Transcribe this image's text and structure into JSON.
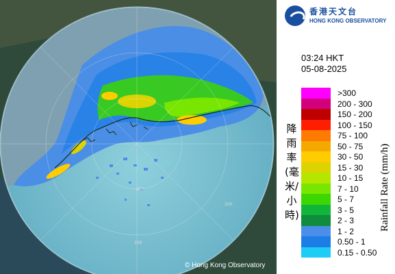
{
  "map": {
    "copyright": "© Hong Kong Observatory",
    "range_labels": [
      "200",
      "200",
      "200"
    ],
    "radar_colors": {
      "coverage": "#6fb7c8",
      "land": "#3f5a3f",
      "sea_outside": "#243a48"
    }
  },
  "header": {
    "org_name_zh": "香港天文台",
    "org_name_en": "HONG KONG OBSERVATORY",
    "logo_icon": "hko-logo-icon"
  },
  "timestamp": {
    "time": "03:24 HKT",
    "date": "05-08-2025"
  },
  "legend": {
    "title_zh": "降雨率(毫米/小時)",
    "title_en": "Rainfall Rate (mm/h)",
    "items": [
      {
        "label": ">300",
        "color": "#ff00ff"
      },
      {
        "label": "200 - 300",
        "color": "#d2007c"
      },
      {
        "label": "150 - 200",
        "color": "#be0000"
      },
      {
        "label": "100 - 150",
        "color": "#ff1e00"
      },
      {
        "label": "75 - 100",
        "color": "#ff7a00"
      },
      {
        "label": "50 - 75",
        "color": "#f4a800"
      },
      {
        "label": "30 - 50",
        "color": "#ffcc00"
      },
      {
        "label": "15 - 30",
        "color": "#dcd300"
      },
      {
        "label": "10 - 15",
        "color": "#b4e600"
      },
      {
        "label": "7 - 10",
        "color": "#78e600"
      },
      {
        "label": "5 - 7",
        "color": "#3cd600"
      },
      {
        "label": "3 - 5",
        "color": "#12b43a"
      },
      {
        "label": "2 - 3",
        "color": "#0f8c3c"
      },
      {
        "label": "1 - 2",
        "color": "#4a8eea"
      },
      {
        "label": "0.50 - 1",
        "color": "#1c7de6"
      },
      {
        "label": "0.15 - 0.50",
        "color": "#1ecdf5"
      }
    ]
  }
}
